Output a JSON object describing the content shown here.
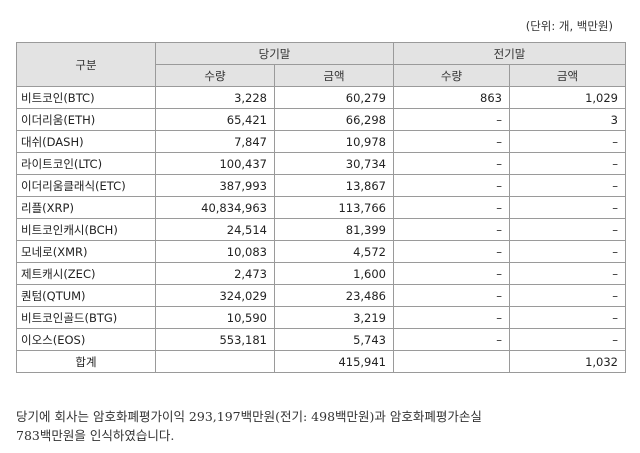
{
  "unit_label": "(단위: 개, 백만원)",
  "header": {
    "category": "구분",
    "current_period": "당기말",
    "prior_period": "전기말",
    "quantity": "수량",
    "amount": "금액"
  },
  "rows": [
    {
      "name": "비트코인(BTC)",
      "cur_qty": "3,228",
      "cur_amt": "60,279",
      "prev_qty": "863",
      "prev_amt": "1,029"
    },
    {
      "name": "이더리움(ETH)",
      "cur_qty": "65,421",
      "cur_amt": "66,298",
      "prev_qty": "–",
      "prev_amt": "3"
    },
    {
      "name": "대쉬(DASH)",
      "cur_qty": "7,847",
      "cur_amt": "10,978",
      "prev_qty": "–",
      "prev_amt": "–"
    },
    {
      "name": "라이트코인(LTC)",
      "cur_qty": "100,437",
      "cur_amt": "30,734",
      "prev_qty": "–",
      "prev_amt": "–"
    },
    {
      "name": "이더리움클래식(ETC)",
      "cur_qty": "387,993",
      "cur_amt": "13,867",
      "prev_qty": "–",
      "prev_amt": "–"
    },
    {
      "name": "리플(XRP)",
      "cur_qty": "40,834,963",
      "cur_amt": "113,766",
      "prev_qty": "–",
      "prev_amt": "–"
    },
    {
      "name": "비트코인캐시(BCH)",
      "cur_qty": "24,514",
      "cur_amt": "81,399",
      "prev_qty": "–",
      "prev_amt": "–"
    },
    {
      "name": "모네로(XMR)",
      "cur_qty": "10,083",
      "cur_amt": "4,572",
      "prev_qty": "–",
      "prev_amt": "–"
    },
    {
      "name": "제트캐시(ZEC)",
      "cur_qty": "2,473",
      "cur_amt": "1,600",
      "prev_qty": "–",
      "prev_amt": "–"
    },
    {
      "name": "퀀텀(QTUM)",
      "cur_qty": "324,029",
      "cur_amt": "23,486",
      "prev_qty": "–",
      "prev_amt": "–"
    },
    {
      "name": "비트코인골드(BTG)",
      "cur_qty": "10,590",
      "cur_amt": "3,219",
      "prev_qty": "–",
      "prev_amt": "–"
    },
    {
      "name": "이오스(EOS)",
      "cur_qty": "553,181",
      "cur_amt": "5,743",
      "prev_qty": "–",
      "prev_amt": "–"
    }
  ],
  "total": {
    "name": "합계",
    "cur_qty": "",
    "cur_amt": "415,941",
    "prev_qty": "",
    "prev_amt": "1,032"
  },
  "note_line1": "당기에 회사는 암호화폐평가이익 293,197백만원(전기: 498백만원)과 암호화폐평가손실",
  "note_line2": "783백만원을 인식하였습니다."
}
